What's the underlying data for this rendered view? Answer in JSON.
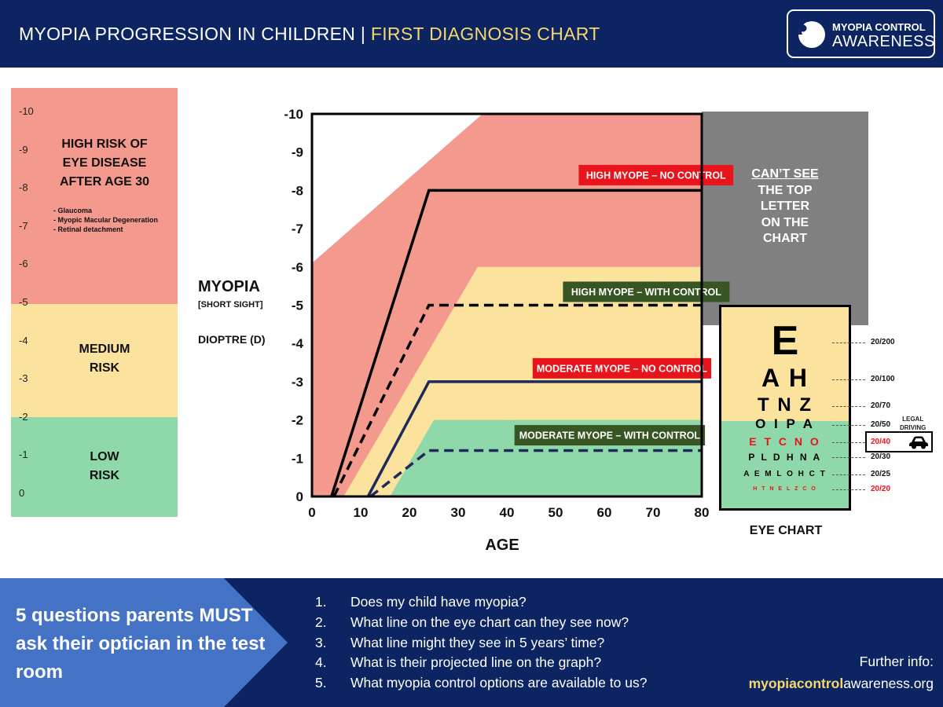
{
  "header": {
    "title": "MYOPIA PROGRESSION IN CHILDREN",
    "separator": "|",
    "subtitle": "FIRST DIAGNOSIS CHART",
    "logo_line1": "MYOPIA CONTROL",
    "logo_line2": "AWARENESS"
  },
  "risk_scale": {
    "ticks": [
      "-10",
      "-9",
      "-8",
      "-7",
      "-6",
      "-5",
      "-4",
      "-3",
      "-2",
      "-1",
      "0"
    ],
    "zones": [
      {
        "title_lines": [
          "HIGH RISK OF",
          "EYE DISEASE",
          "AFTER AGE 30"
        ],
        "range": [
          -10,
          -5
        ],
        "color": "#f4998e",
        "notes": [
          "- Glaucoma",
          "- Myopic Macular Degeneration",
          "- Retinal detachment"
        ]
      },
      {
        "title_lines": [
          "MEDIUM",
          "RISK"
        ],
        "range": [
          -5,
          -2
        ],
        "color": "#fbe39e"
      },
      {
        "title_lines": [
          "LOW",
          "RISK"
        ],
        "range": [
          -2,
          0
        ],
        "color": "#8fd8a9"
      }
    ]
  },
  "y_axis_label": {
    "line1": "MYOPIA",
    "line2": "[SHORT SIGHT]",
    "line3": "DIOPTRE (D)"
  },
  "cant_see": {
    "line1": "CAN’T SEE",
    "line2": "THE TOP",
    "line3": "LETTER",
    "line4": "ON THE",
    "line5": "CHART"
  },
  "chart_data": {
    "type": "line",
    "xlabel": "AGE",
    "ylabel": "MYOPIA [SHORT SIGHT] DIOPTRE (D)",
    "xlim": [
      0,
      80
    ],
    "ylim": [
      0,
      -10
    ],
    "x_ticks": [
      0,
      10,
      20,
      30,
      40,
      50,
      60,
      70,
      80
    ],
    "y_ticks": [
      0,
      -1,
      -2,
      -3,
      -4,
      -5,
      -6,
      -7,
      -8,
      -9,
      -10
    ],
    "y_tick_labels": [
      "0",
      "-1",
      "-2",
      "-3",
      "-4",
      "-5",
      "-6",
      "-7",
      "-8",
      "-9",
      "-10"
    ],
    "bands": [
      {
        "color": "#f4998e",
        "points": [
          [
            0,
            -6.1
          ],
          [
            35,
            -10
          ],
          [
            80,
            -10
          ],
          [
            80,
            0
          ],
          [
            0,
            0
          ]
        ]
      },
      {
        "color": "#fbe39e",
        "points": [
          [
            6.5,
            0
          ],
          [
            34,
            -6
          ],
          [
            80,
            -6
          ],
          [
            80,
            0
          ]
        ]
      },
      {
        "color": "#8fd8a9",
        "points": [
          [
            16,
            0
          ],
          [
            25,
            -2
          ],
          [
            80,
            -2
          ],
          [
            80,
            0
          ]
        ]
      }
    ],
    "series": [
      {
        "name": "HIGH MYOPE – NO CONTROL",
        "style": "solid",
        "color": "#000000",
        "label_bg": "#e8141c",
        "label_at": [
          44,
          -8.4
        ],
        "points": [
          [
            4,
            0
          ],
          [
            24,
            -8
          ],
          [
            80,
            -8
          ]
        ]
      },
      {
        "name": "HIGH MYOPE – WITH CONTROL",
        "style": "dashed",
        "color": "#000000",
        "label_bg": "#375623",
        "label_at": [
          42,
          -5.35
        ],
        "points": [
          [
            4.5,
            0
          ],
          [
            24,
            -5
          ],
          [
            80,
            -5
          ]
        ]
      },
      {
        "name": "MODERATE MYOPE – NO CONTROL",
        "style": "solid",
        "color": "#1f2a5a",
        "label_bg": "#e8141c",
        "label_at": [
          37,
          -3.35
        ],
        "points": [
          [
            11.5,
            0
          ],
          [
            24,
            -3
          ],
          [
            80,
            -3
          ]
        ]
      },
      {
        "name": "MODERATE MYOPE – WITH CONTROL",
        "style": "dashed",
        "color": "#1f2a5a",
        "label_bg": "#375623",
        "label_at": [
          34.5,
          -1.6
        ],
        "points": [
          [
            12,
            0
          ],
          [
            24,
            -1.2
          ],
          [
            80,
            -1.2
          ]
        ]
      }
    ]
  },
  "eye_chart": {
    "caption": "EYE CHART",
    "rows": [
      {
        "letters": "E",
        "acuity": "20/200",
        "color": "#000000"
      },
      {
        "letters": "A H",
        "acuity": "20/100",
        "color": "#000000"
      },
      {
        "letters": "T N Z",
        "acuity": "20/70",
        "color": "#000000"
      },
      {
        "letters": "O I P A",
        "acuity": "20/50",
        "color": "#000000"
      },
      {
        "letters": "E T C N O",
        "acuity": "20/40",
        "color": "#e8141c"
      },
      {
        "letters": "P L D H N A",
        "acuity": "20/30",
        "color": "#000000"
      },
      {
        "letters": "A E M L O H C T",
        "acuity": "20/25",
        "color": "#000000"
      },
      {
        "letters": "H T N E L Z C O",
        "acuity": "20/20",
        "color": "#e8141c"
      }
    ],
    "legal_line1": "LEGAL",
    "legal_line2": "DRIVING",
    "car_icon": "car-icon"
  },
  "footer": {
    "title": "5 questions parents MUST ask their optician in the test room",
    "questions": [
      {
        "num": "1.",
        "text": "Does my child have myopia?"
      },
      {
        "num": "2.",
        "text": "What line on the eye chart can they see now?"
      },
      {
        "num": "3.",
        "text": "What line might they see in 5 years’ time?"
      },
      {
        "num": "4.",
        "text": "What is their projected line on the graph?"
      },
      {
        "num": "5.",
        "text": "What myopia control options are available to us?"
      }
    ],
    "info_label": "Further info:",
    "site_bold": "myopiacontrol",
    "site_rest": "awareness.org"
  },
  "colors": {
    "navy": "#0c2461",
    "accent_yellow": "#f5d76e",
    "footer_blue": "#4472c4",
    "red": "#e8141c",
    "green_label": "#375623"
  }
}
